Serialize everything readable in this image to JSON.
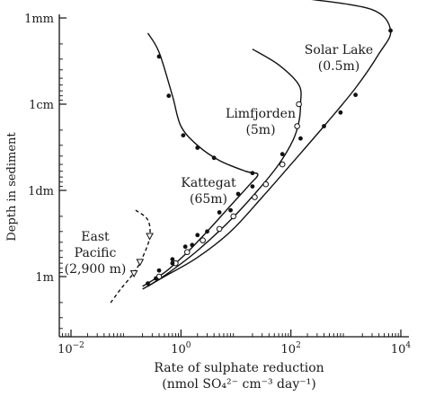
{
  "chart_data": {
    "type": "line",
    "xlabel_line1": "Rate of sulphate reduction",
    "xlabel_line2": "(nmol SO₄²⁻ cm⁻³ day⁻¹)",
    "ylabel": "Depth in sediment",
    "x_scale": "log",
    "y_scale": "log",
    "xlim": [
      0.01,
      10000
    ],
    "ylim_depth_m": [
      0.001,
      1
    ],
    "x_ticks": [
      {
        "value": 0.01,
        "mantissa": "10",
        "exp": "−2"
      },
      {
        "value": 1,
        "mantissa": "10",
        "exp": "0"
      },
      {
        "value": 100,
        "mantissa": "10",
        "exp": "2"
      },
      {
        "value": 10000,
        "mantissa": "10",
        "exp": "4"
      }
    ],
    "y_ticks": [
      {
        "value": 0.001,
        "label": "1mm"
      },
      {
        "value": 0.01,
        "label": "1cm"
      },
      {
        "value": 0.1,
        "label": "1dm"
      },
      {
        "value": 1,
        "label": "1m"
      }
    ],
    "grid": false,
    "series": [
      {
        "name_line1": "Solar Lake",
        "name_line2": "(0.5m)",
        "marker": "filled-circle",
        "line": "solid",
        "curve": [
          [
            200,
            0.0006
          ],
          [
            3000,
            0.0008
          ],
          [
            6500,
            0.0014
          ],
          [
            4000,
            0.0026
          ],
          [
            1500,
            0.0065
          ],
          [
            400,
            0.018
          ],
          [
            100,
            0.05
          ],
          [
            30,
            0.12
          ],
          [
            8,
            0.3
          ],
          [
            2,
            0.6
          ],
          [
            0.5,
            1.0
          ],
          [
            0.2,
            1.4
          ]
        ],
        "points": [
          [
            6500,
            0.0014
          ],
          [
            1500,
            0.0078
          ],
          [
            800,
            0.0125
          ],
          [
            400,
            0.018
          ],
          [
            150,
            0.025
          ],
          [
            70,
            0.038
          ],
          [
            20,
            0.09
          ],
          [
            8,
            0.17
          ],
          [
            3,
            0.3
          ],
          [
            1.6,
            0.43
          ],
          [
            0.7,
            0.63
          ],
          [
            0.4,
            0.85
          ],
          [
            0.25,
            1.2
          ]
        ]
      },
      {
        "name_line1": "Limfjorden",
        "name_line2": "(5m)",
        "marker": "open-circle",
        "line": "solid",
        "curve": [
          [
            20,
            0.0023
          ],
          [
            60,
            0.0035
          ],
          [
            140,
            0.006
          ],
          [
            150,
            0.01
          ],
          [
            140,
            0.016
          ],
          [
            110,
            0.026
          ],
          [
            60,
            0.05
          ],
          [
            25,
            0.1
          ],
          [
            8,
            0.22
          ],
          [
            2,
            0.5
          ],
          [
            0.6,
            0.9
          ],
          [
            0.25,
            1.3
          ]
        ],
        "points": [
          [
            140,
            0.01
          ],
          [
            130,
            0.018
          ],
          [
            70,
            0.05
          ],
          [
            35,
            0.085
          ],
          [
            22,
            0.12
          ],
          [
            9,
            0.2
          ],
          [
            5,
            0.28
          ],
          [
            2.5,
            0.38
          ],
          [
            1.3,
            0.52
          ],
          [
            0.8,
            0.7
          ],
          [
            0.4,
            1.0
          ]
        ]
      },
      {
        "name_line1": "Kattegat",
        "name_line2": "(65m)",
        "marker": "filled-circle",
        "line": "solid",
        "curve": [
          [
            0.25,
            0.0015
          ],
          [
            0.4,
            0.0025
          ],
          [
            0.7,
            0.008
          ],
          [
            1,
            0.018
          ],
          [
            2,
            0.03
          ],
          [
            5,
            0.045
          ],
          [
            15,
            0.06
          ],
          [
            25,
            0.065
          ],
          [
            18,
            0.085
          ],
          [
            8,
            0.15
          ],
          [
            3,
            0.3
          ],
          [
            1.2,
            0.55
          ],
          [
            0.5,
            0.9
          ],
          [
            0.2,
            1.3
          ]
        ],
        "points": [
          [
            0.4,
            0.0028
          ],
          [
            0.6,
            0.008
          ],
          [
            1.1,
            0.023
          ],
          [
            2,
            0.032
          ],
          [
            4,
            0.042
          ],
          [
            20,
            0.063
          ],
          [
            11,
            0.11
          ],
          [
            5,
            0.18
          ],
          [
            2,
            0.33
          ],
          [
            1.2,
            0.45
          ],
          [
            0.7,
            0.7
          ],
          [
            0.35,
            1.05
          ]
        ]
      },
      {
        "name_line1": "East",
        "name_line2": "Pacific",
        "name_line3": "(2,900 m)",
        "marker": "triangle-down",
        "line": "dashed",
        "curve": [
          [
            0.15,
            0.17
          ],
          [
            0.25,
            0.22
          ],
          [
            0.27,
            0.35
          ],
          [
            0.2,
            0.6
          ],
          [
            0.14,
            0.9
          ],
          [
            0.08,
            1.4
          ],
          [
            0.05,
            2.1
          ]
        ],
        "points": [
          [
            0.27,
            0.34
          ],
          [
            0.18,
            0.68
          ],
          [
            0.14,
            0.92
          ]
        ]
      }
    ]
  }
}
